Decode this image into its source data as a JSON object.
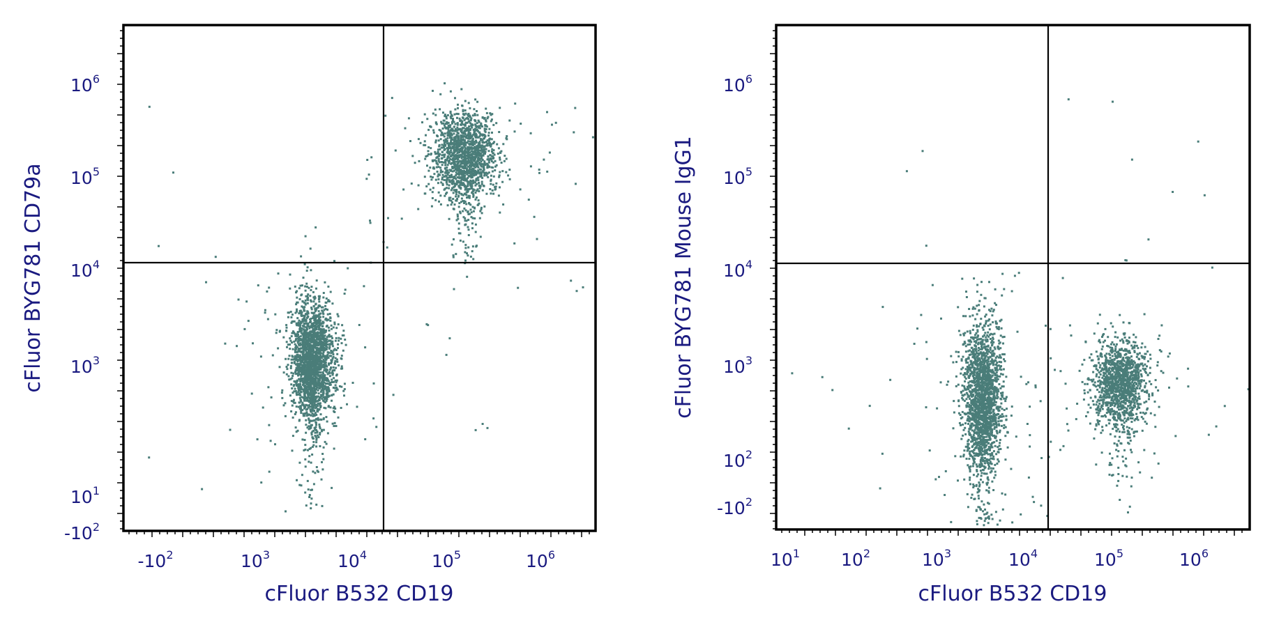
{
  "chart_data": [
    {
      "type": "scatter",
      "panel": "left",
      "xlabel": "cFluor B532 CD19",
      "ylabel": "cFluor BYG781 CD79a",
      "x_scale": "biexponential",
      "y_scale": "biexponential",
      "x_ticks": [
        {
          "base": "-10",
          "exp": "2"
        },
        {
          "base": "10",
          "exp": "3"
        },
        {
          "base": "10",
          "exp": "4"
        },
        {
          "base": "10",
          "exp": "5"
        },
        {
          "base": "10",
          "exp": "6"
        }
      ],
      "y_ticks": [
        {
          "base": "-10",
          "exp": "2"
        },
        {
          "base": "10",
          "exp": "1"
        },
        {
          "base": "10",
          "exp": "3"
        },
        {
          "base": "10",
          "exp": "4"
        },
        {
          "base": "10",
          "exp": "5"
        },
        {
          "base": "10",
          "exp": "6"
        }
      ],
      "quadrant_gate": {
        "x": 20000,
        "y": 11000
      },
      "populations": [
        {
          "description": "CD19- CD79a- cluster",
          "center_x": 3800,
          "center_y": 1200,
          "points": 2200
        },
        {
          "description": "CD19+ CD79a+ cluster",
          "center_x": 150000,
          "center_y": 180000,
          "points": 1600
        }
      ],
      "dot_color": "#4a7d79"
    },
    {
      "type": "scatter",
      "panel": "right",
      "xlabel": "cFluor B532 CD19",
      "ylabel": "cFluor BYG781 Mouse IgG1",
      "x_scale": "biexponential",
      "y_scale": "biexponential",
      "x_ticks": [
        {
          "base": "10",
          "exp": "1"
        },
        {
          "base": "10",
          "exp": "2"
        },
        {
          "base": "10",
          "exp": "3"
        },
        {
          "base": "10",
          "exp": "4"
        },
        {
          "base": "10",
          "exp": "5"
        },
        {
          "base": "10",
          "exp": "6"
        }
      ],
      "y_ticks": [
        {
          "base": "-10",
          "exp": "2"
        },
        {
          "base": "10",
          "exp": "2"
        },
        {
          "base": "10",
          "exp": "3"
        },
        {
          "base": "10",
          "exp": "4"
        },
        {
          "base": "10",
          "exp": "5"
        },
        {
          "base": "10",
          "exp": "6"
        }
      ],
      "quadrant_gate": {
        "x": 20000,
        "y": 11000
      },
      "populations": [
        {
          "description": "CD19- cluster",
          "center_x": 3300,
          "center_y": 500,
          "points": 2000
        },
        {
          "description": "CD19+ cluster",
          "center_x": 130000,
          "center_y": 700,
          "points": 1400
        }
      ],
      "dot_color": "#4a7d79"
    }
  ]
}
